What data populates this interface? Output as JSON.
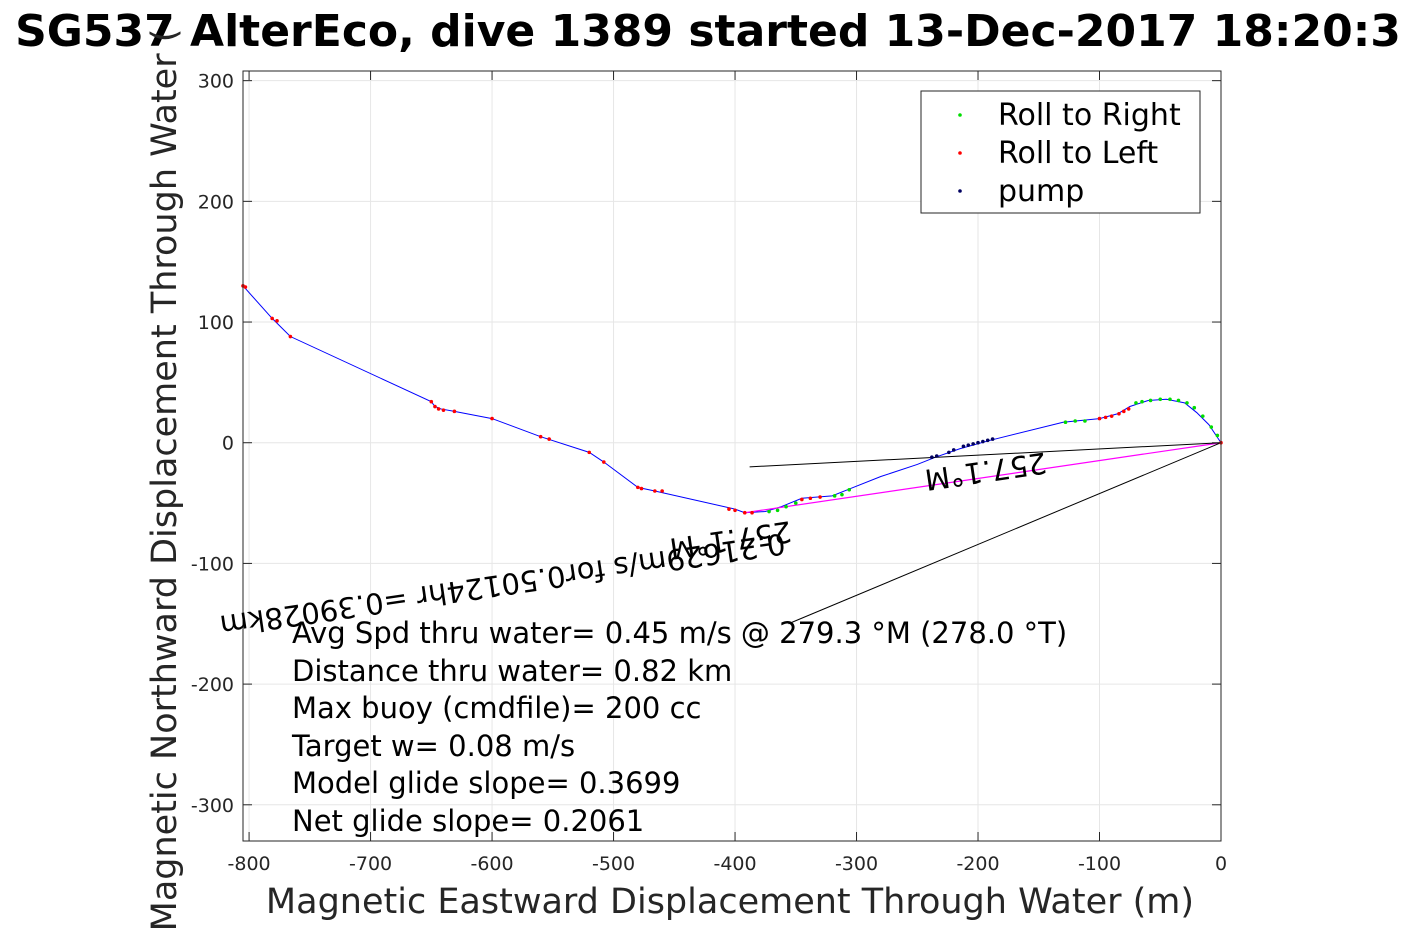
{
  "chart_data": {
    "type": "scatter",
    "title": "SG537 AlterEco, dive 1389 started 13-Dec-2017 18:20:3",
    "xlabel": "Magnetic Eastward Displacement Through Water (m)",
    "ylabel": "Magnetic Northward Displacement Through Water (",
    "xlim": [
      -805,
      0
    ],
    "ylim": [
      -330,
      308
    ],
    "xticks": [
      -800,
      -700,
      -600,
      -500,
      -400,
      -300,
      -200,
      -100,
      0
    ],
    "yticks": [
      -300,
      -200,
      -100,
      0,
      100,
      200,
      300
    ],
    "grid": true,
    "legend_position": "top-right",
    "legend": [
      "Roll to Right",
      "Roll to Left",
      "pump"
    ],
    "colors": {
      "track": "#0000ff",
      "roll_right": "#00dd00",
      "roll_left": "#ff0000",
      "pump": "#000060",
      "net_line": "#ff00ff",
      "annotation_lines": "#000000",
      "grid": "#e6e6e6"
    },
    "track": [
      [
        -805,
        130
      ],
      [
        -781,
        103
      ],
      [
        -766,
        88
      ],
      [
        -650,
        34
      ],
      [
        -647,
        30
      ],
      [
        -642,
        28
      ],
      [
        -631,
        26
      ],
      [
        -600,
        20
      ],
      [
        -560,
        5
      ],
      [
        -520,
        -8
      ],
      [
        -508,
        -16
      ],
      [
        -480,
        -37
      ],
      [
        -466,
        -40
      ],
      [
        -400,
        -55
      ],
      [
        -392,
        -58
      ],
      [
        -375,
        -57
      ],
      [
        -362,
        -53
      ],
      [
        -345,
        -46
      ],
      [
        -320,
        -44
      ],
      [
        -305,
        -38
      ],
      [
        -280,
        -28
      ],
      [
        -250,
        -18
      ],
      [
        -235,
        -12
      ],
      [
        -215,
        -5
      ],
      [
        -190,
        2
      ],
      [
        -130,
        17
      ],
      [
        -100,
        20
      ],
      [
        -85,
        24
      ],
      [
        -75,
        30
      ],
      [
        -60,
        35
      ],
      [
        -45,
        36
      ],
      [
        -30,
        33
      ],
      [
        -20,
        25
      ],
      [
        -10,
        15
      ],
      [
        0,
        0
      ]
    ],
    "roll_right": [
      [
        -372,
        -57
      ],
      [
        -365,
        -56
      ],
      [
        -358,
        -53
      ],
      [
        -350,
        -50
      ],
      [
        -318,
        -44
      ],
      [
        -312,
        -43
      ],
      [
        -306,
        -39
      ],
      [
        -128,
        17
      ],
      [
        -120,
        18
      ],
      [
        -112,
        18
      ],
      [
        -70,
        33
      ],
      [
        -65,
        34
      ],
      [
        -58,
        35
      ],
      [
        -50,
        36
      ],
      [
        -42,
        36
      ],
      [
        -35,
        35
      ],
      [
        -28,
        33
      ],
      [
        -22,
        29
      ],
      [
        -15,
        22
      ],
      [
        -8,
        13
      ],
      [
        -3,
        6
      ]
    ],
    "roll_left": [
      [
        -805,
        130
      ],
      [
        -803,
        129
      ],
      [
        -781,
        103
      ],
      [
        -777,
        101
      ],
      [
        -766,
        88
      ],
      [
        -650,
        34
      ],
      [
        -647,
        30
      ],
      [
        -644,
        28
      ],
      [
        -640,
        27
      ],
      [
        -631,
        26
      ],
      [
        -600,
        20
      ],
      [
        -560,
        5
      ],
      [
        -553,
        3
      ],
      [
        -520,
        -8
      ],
      [
        -508,
        -16
      ],
      [
        -480,
        -37
      ],
      [
        -477,
        -38
      ],
      [
        -466,
        -40
      ],
      [
        -460,
        -40
      ],
      [
        -405,
        -55
      ],
      [
        -400,
        -56
      ],
      [
        -392,
        -58
      ],
      [
        -386,
        -58
      ],
      [
        -345,
        -47
      ],
      [
        -338,
        -46
      ],
      [
        -330,
        -45
      ],
      [
        -100,
        20
      ],
      [
        -95,
        21
      ],
      [
        -90,
        22
      ],
      [
        -84,
        24
      ],
      [
        -80,
        26
      ],
      [
        -76,
        28
      ],
      [
        0,
        0
      ]
    ],
    "pump": [
      [
        -238,
        -12
      ],
      [
        -234,
        -11
      ],
      [
        -224,
        -8
      ],
      [
        -220,
        -6
      ],
      [
        -212,
        -3
      ],
      [
        -208,
        -2
      ],
      [
        -204,
        -1
      ],
      [
        -200,
        0
      ],
      [
        -196,
        1
      ],
      [
        -192,
        2
      ],
      [
        -188,
        3
      ]
    ],
    "net_line": [
      [
        -392,
        -58
      ],
      [
        0,
        0
      ]
    ],
    "annotation_lines": [
      [
        [
          -388,
          -20
        ],
        [
          0,
          0
        ]
      ],
      [
        [
          -356,
          -150
        ],
        [
          0,
          0
        ]
      ]
    ],
    "rotated_labels": [
      {
        "text": "257.1°M",
        "x": -145,
        "y": -8
      },
      {
        "text": "0.21629m/s for0.50124hr =0.39028km",
        "x": -360,
        "y": -75
      },
      {
        "text": "257.1°M",
        "x": -355,
        "y": -65
      }
    ],
    "stats_text": [
      "Avg Spd thru water=  0.45 m/s @ 279.3 °M (278.0 °T)",
      "Distance thru water=  0.82 km",
      "Max buoy (cmdfile)= 200 cc",
      "Target w= 0.08 m/s",
      "Model glide slope= 0.3699",
      "Net glide slope= 0.2061"
    ]
  }
}
